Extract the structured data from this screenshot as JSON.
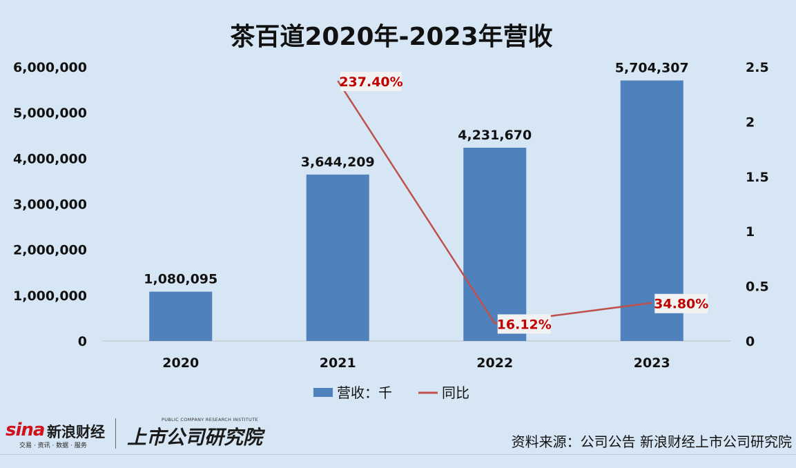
{
  "chart_data": {
    "type": "bar",
    "title": "茶百道2020年-2023年营收",
    "categories": [
      "2020",
      "2021",
      "2022",
      "2023"
    ],
    "series": [
      {
        "name": "营收：千",
        "type": "bar",
        "axis": "left",
        "values": [
          1080095,
          3644209,
          4231670,
          5704307
        ],
        "labels": [
          "1,080,095",
          "3,644,209",
          "4,231,670",
          "5,704,307"
        ],
        "color": "#4f81bd"
      },
      {
        "name": "同比",
        "type": "line",
        "axis": "right",
        "values": [
          null,
          2.374,
          0.1612,
          0.348
        ],
        "labels": [
          "",
          "237.40%",
          "16.12%",
          "34.80%"
        ],
        "color": "#c0504d",
        "label_color": "#c00000"
      }
    ],
    "y_left": {
      "ylim": [
        0,
        6000000
      ],
      "ticks": [
        0,
        1000000,
        2000000,
        3000000,
        4000000,
        5000000,
        6000000
      ],
      "tick_labels": [
        "0",
        "1,000,000",
        "2,000,000",
        "3,000,000",
        "4,000,000",
        "5,000,000",
        "6,000,000"
      ]
    },
    "y_right": {
      "ylim": [
        0,
        2.5
      ],
      "ticks": [
        0,
        0.5,
        1,
        1.5,
        2,
        2.5
      ],
      "tick_labels": [
        "0",
        "0.5",
        "1",
        "1.5",
        "2",
        "2.5"
      ]
    },
    "grid": false,
    "legend": "bottom"
  },
  "footer": {
    "logo_sina": "sina",
    "logo_sina_cn": "新浪财经",
    "logo_sina_sub": "交易 · 资讯 · 数据 · 服务",
    "logo_institute_en": "PUBLIC COMPANY RESEARCH INSTITUTE",
    "logo_institute_cn": "上市公司研究院",
    "source": "资料来源：公司公告 新浪财经上市公司研究院"
  }
}
